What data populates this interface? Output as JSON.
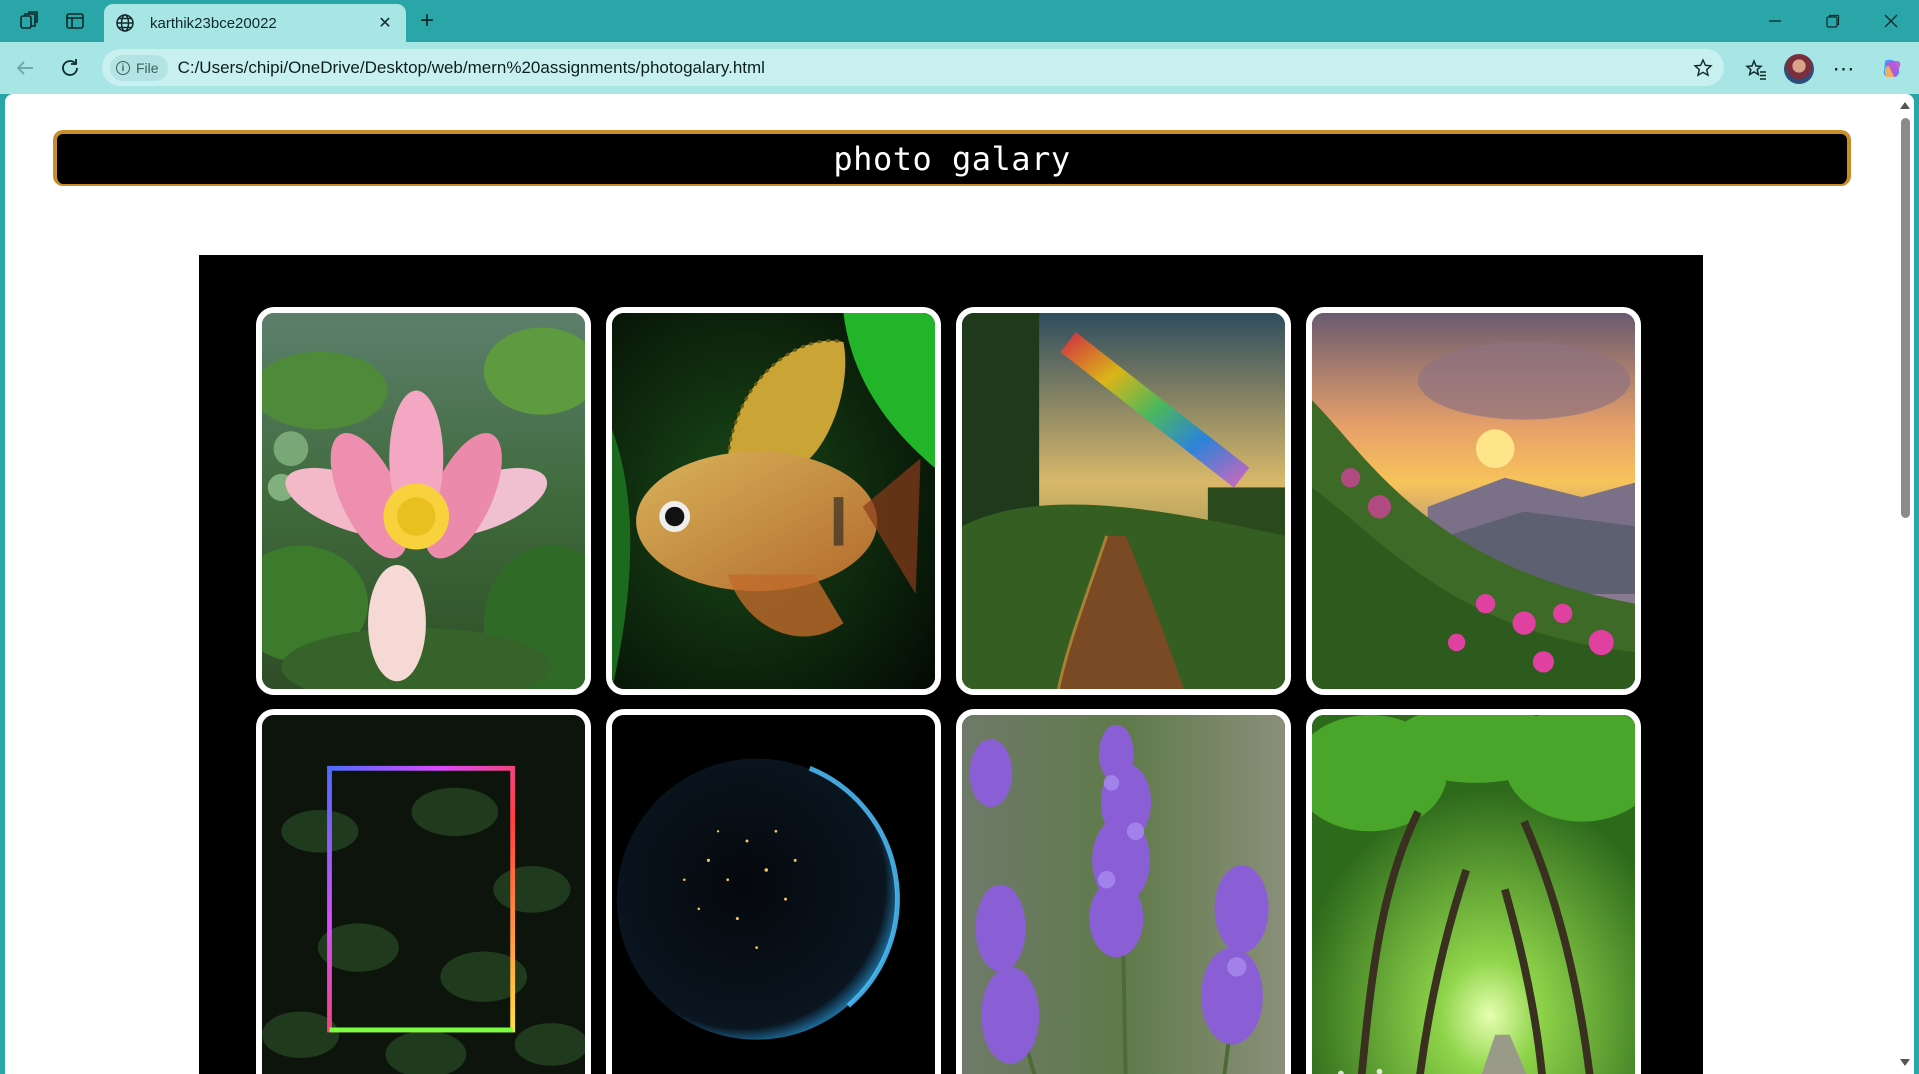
{
  "browser": {
    "tab": {
      "title": "karthik23bce20022"
    },
    "address": {
      "scheme_chip": "File",
      "url": "C:/Users/chipi/OneDrive/Desktop/web/mern%20assignments/photogalary.html"
    }
  },
  "page": {
    "title": "photo galary",
    "colors": {
      "header_border": "#c88d2a",
      "header_bg": "#000000",
      "gallery_bg": "#000000",
      "card_border": "#ffffff"
    },
    "photos": [
      {
        "subject": "pink lotus flower"
      },
      {
        "subject": "golden tropical fish"
      },
      {
        "subject": "forest path with rainbow"
      },
      {
        "subject": "mountain sunset with flowers"
      },
      {
        "subject": "neon frame over leaves"
      },
      {
        "subject": "earth at night from space"
      },
      {
        "subject": "lavender flowers"
      },
      {
        "subject": "green tree tunnel road"
      }
    ]
  }
}
